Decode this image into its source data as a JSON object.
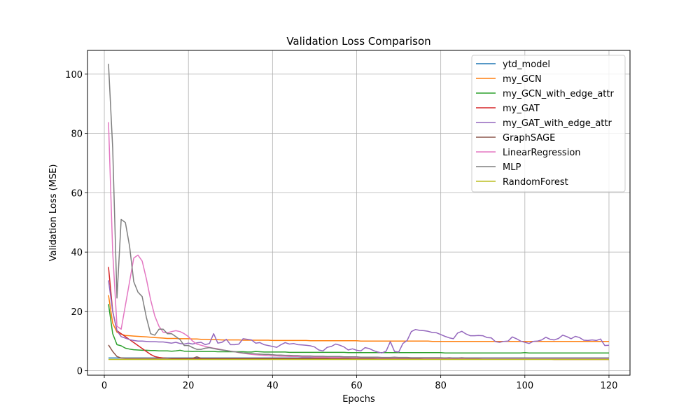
{
  "chart_data": {
    "type": "line",
    "title": "Validation Loss Comparison",
    "xlabel": "Epochs",
    "ylabel": "Validation Loss (MSE)",
    "xlim": [
      -4,
      125
    ],
    "ylim": [
      -1.5,
      108
    ],
    "xticks": [
      0,
      20,
      40,
      60,
      80,
      100,
      120
    ],
    "yticks": [
      0,
      20,
      40,
      60,
      80,
      100
    ],
    "grid": true,
    "legend_position": "top-right",
    "x": [
      1,
      2,
      3,
      4,
      5,
      6,
      7,
      8,
      9,
      10,
      11,
      12,
      13,
      14,
      15,
      16,
      17,
      18,
      19,
      20,
      21,
      22,
      23,
      24,
      25,
      26,
      27,
      28,
      29,
      30,
      31,
      32,
      33,
      34,
      35,
      36,
      37,
      38,
      39,
      40,
      41,
      42,
      43,
      44,
      45,
      46,
      47,
      48,
      49,
      50,
      51,
      52,
      53,
      54,
      55,
      56,
      57,
      58,
      59,
      60,
      61,
      62,
      63,
      64,
      65,
      66,
      67,
      68,
      69,
      70,
      71,
      72,
      73,
      74,
      75,
      76,
      77,
      78,
      79,
      80,
      81,
      82,
      83,
      84,
      85,
      86,
      87,
      88,
      89,
      90,
      91,
      92,
      93,
      94,
      95,
      96,
      97,
      98,
      99,
      100,
      101,
      102,
      103,
      104,
      105,
      106,
      107,
      108,
      109,
      110,
      111,
      112,
      113,
      114,
      115,
      116,
      117,
      118,
      119,
      120
    ],
    "series": [
      {
        "name": "ytd_model",
        "color": "#1f77b4",
        "values": [
          4.3,
          4.3,
          4.3,
          4.3,
          4.3,
          4.3,
          4.3,
          4.3,
          4.3,
          4.3,
          4.3,
          4.3,
          4.3,
          4.3,
          4.3,
          4.3,
          4.3,
          4.3,
          4.3,
          4.3,
          4.3,
          4.3,
          4.3,
          4.3,
          4.3,
          4.3,
          4.3,
          4.3,
          4.3,
          4.3,
          4.3,
          4.3,
          4.3,
          4.3,
          4.3,
          4.3,
          4.3,
          4.3,
          4.3,
          4.3,
          4.3,
          4.3,
          4.3,
          4.3,
          4.3,
          4.3,
          4.3,
          4.3,
          4.3,
          4.3,
          4.3,
          4.3,
          4.3,
          4.3,
          4.3,
          4.3,
          4.3,
          4.3,
          4.3,
          4.3,
          4.3,
          4.3,
          4.3,
          4.3,
          4.3,
          4.3,
          4.3,
          4.3,
          4.3,
          4.3,
          4.3,
          4.3,
          4.3,
          4.3,
          4.3,
          4.3,
          4.3,
          4.3,
          4.3,
          4.3,
          4.3,
          4.3,
          4.3,
          4.3,
          4.3,
          4.3,
          4.3,
          4.3,
          4.3,
          4.3,
          4.3,
          4.3,
          4.3,
          4.3,
          4.3,
          4.3,
          4.3,
          4.3,
          4.3,
          4.3,
          4.3,
          4.3,
          4.3,
          4.3,
          4.3,
          4.3,
          4.3,
          4.3,
          4.3,
          4.3,
          4.3,
          4.3,
          4.3,
          4.3,
          4.3,
          4.3,
          4.3,
          4.3,
          4.3,
          4.3
        ]
      },
      {
        "name": "my_GCN",
        "color": "#ff7f0e",
        "values": [
          25.5,
          16.0,
          13.0,
          12.3,
          11.9,
          11.8,
          11.7,
          11.6,
          11.5,
          11.4,
          11.3,
          11.2,
          11.1,
          11.0,
          10.9,
          10.9,
          10.9,
          10.8,
          10.8,
          10.8,
          10.7,
          10.7,
          10.6,
          10.6,
          10.5,
          10.5,
          10.5,
          10.4,
          10.4,
          10.4,
          10.4,
          10.4,
          10.3,
          10.3,
          10.3,
          10.3,
          10.3,
          10.3,
          10.3,
          10.2,
          10.2,
          10.2,
          10.2,
          10.2,
          10.2,
          10.2,
          10.2,
          10.2,
          10.1,
          10.1,
          10.1,
          10.1,
          10.1,
          10.1,
          10.1,
          10.1,
          10.1,
          10.1,
          10.1,
          10.1,
          10.0,
          10.0,
          10.0,
          10.0,
          10.0,
          10.0,
          10.0,
          10.0,
          10.0,
          10.0,
          10.0,
          10.0,
          10.0,
          10.0,
          10.0,
          10.0,
          10.0,
          9.9,
          9.9,
          9.9,
          9.9,
          9.9,
          9.9,
          9.9,
          9.9,
          9.9,
          9.9,
          9.9,
          9.9,
          9.9,
          9.9,
          9.9,
          9.9,
          9.9,
          9.9,
          9.9,
          9.9,
          9.9,
          9.9,
          9.9,
          9.9,
          9.9,
          9.9,
          9.9,
          9.9,
          9.9,
          9.9,
          9.9,
          9.9,
          9.9,
          9.9,
          9.9,
          9.9,
          9.9,
          9.9,
          9.9,
          9.9,
          9.9,
          9.9,
          9.9
        ]
      },
      {
        "name": "my_GCN_with_edge_attr",
        "color": "#2ca02c",
        "values": [
          22.5,
          12.5,
          8.8,
          8.4,
          7.6,
          7.3,
          7.1,
          7.0,
          6.9,
          6.9,
          6.8,
          6.8,
          6.7,
          6.7,
          6.7,
          6.6,
          6.7,
          6.9,
          6.6,
          6.6,
          6.5,
          6.6,
          6.5,
          6.5,
          6.5,
          6.5,
          6.4,
          6.4,
          6.4,
          6.4,
          6.4,
          6.4,
          6.4,
          6.3,
          6.3,
          6.5,
          6.4,
          6.3,
          6.3,
          6.3,
          6.3,
          6.3,
          6.3,
          6.2,
          6.2,
          6.2,
          6.2,
          6.2,
          6.2,
          6.2,
          6.2,
          6.2,
          6.2,
          6.2,
          6.2,
          6.2,
          6.2,
          6.1,
          6.1,
          6.1,
          6.1,
          6.1,
          6.1,
          6.1,
          6.1,
          6.1,
          6.1,
          6.1,
          6.1,
          6.1,
          6.1,
          6.1,
          6.1,
          6.1,
          6.1,
          6.1,
          6.1,
          6.1,
          6.1,
          6.1,
          6.0,
          6.0,
          6.0,
          6.0,
          6.0,
          6.0,
          6.0,
          6.0,
          6.0,
          6.0,
          6.0,
          6.0,
          6.0,
          6.0,
          6.0,
          6.0,
          6.0,
          6.0,
          6.0,
          6.1,
          6.0,
          6.0,
          6.0,
          6.0,
          6.0,
          6.0,
          6.0,
          6.0,
          6.0,
          6.0,
          6.0,
          6.0,
          6.0,
          6.0,
          6.0,
          6.0,
          6.0,
          6.0,
          6.0,
          6.0
        ]
      },
      {
        "name": "my_GAT",
        "color": "#d62728",
        "values": [
          35.0,
          20.0,
          13.5,
          12.5,
          11.5,
          10.5,
          9.5,
          8.5,
          7.5,
          6.5,
          5.5,
          4.8,
          4.5,
          4.3,
          4.2,
          4.1,
          4.1,
          4.0,
          4.0,
          4.0,
          4.0,
          4.0,
          4.0,
          4.0,
          4.0,
          4.0,
          4.0,
          4.0,
          4.0,
          4.0,
          4.0,
          4.0,
          4.0,
          4.0,
          4.0,
          4.0,
          4.0,
          4.0,
          4.0,
          4.0,
          4.0,
          4.0,
          4.0,
          4.0,
          4.0,
          4.0,
          4.0,
          4.0,
          4.0,
          4.0,
          4.0,
          4.0,
          4.0,
          4.0,
          4.0,
          4.0,
          4.0,
          4.0,
          4.0,
          4.0,
          3.9,
          3.9,
          3.9,
          3.9,
          3.9,
          3.9,
          3.9,
          3.9,
          3.9,
          3.9,
          3.9,
          3.9,
          3.9,
          3.9,
          3.9,
          3.9,
          3.9,
          3.9,
          3.9,
          3.9,
          3.9,
          3.9,
          3.9,
          3.9,
          3.9,
          3.9,
          3.9,
          3.9,
          3.9,
          3.9,
          3.9,
          3.9,
          3.9,
          3.9,
          3.9,
          3.9,
          3.9,
          3.9,
          3.9,
          3.9,
          3.9,
          3.9,
          3.9,
          3.9,
          3.9,
          3.9,
          3.8,
          3.8,
          3.8,
          3.8,
          3.8,
          3.8,
          3.8,
          3.8,
          3.8,
          3.8,
          3.8,
          3.8,
          3.8,
          3.8
        ]
      },
      {
        "name": "my_GAT_with_edge_attr",
        "color": "#9467bd",
        "values": [
          30.5,
          20.0,
          13.5,
          11.5,
          11.0,
          10.5,
          10.2,
          10.0,
          10.0,
          9.9,
          9.8,
          9.8,
          9.7,
          9.7,
          9.5,
          9.3,
          9.6,
          9.2,
          9.0,
          9.3,
          9.0,
          9.4,
          9.6,
          8.8,
          9.2,
          12.5,
          9.3,
          9.6,
          10.6,
          8.8,
          8.8,
          9.0,
          10.8,
          10.6,
          10.4,
          9.3,
          9.5,
          8.8,
          8.5,
          8.2,
          7.9,
          8.8,
          9.5,
          9.0,
          9.2,
          8.8,
          8.7,
          8.6,
          8.4,
          8.0,
          7.0,
          6.7,
          7.9,
          8.2,
          9.0,
          8.6,
          8.0,
          7.0,
          7.4,
          6.9,
          6.7,
          7.8,
          7.5,
          6.8,
          6.3,
          6.0,
          6.6,
          9.8,
          6.5,
          6.3,
          9.2,
          10.2,
          13.2,
          13.9,
          13.6,
          13.5,
          13.3,
          12.9,
          12.8,
          12.2,
          11.6,
          11.1,
          10.8,
          12.7,
          13.3,
          12.4,
          11.8,
          11.8,
          11.9,
          11.8,
          11.2,
          11.1,
          9.8,
          9.6,
          9.9,
          10.0,
          11.4,
          10.8,
          10.0,
          9.6,
          9.2,
          9.9,
          10.0,
          10.4,
          11.3,
          10.6,
          10.4,
          10.9,
          12.0,
          11.5,
          10.8,
          11.6,
          11.2,
          10.3,
          10.2,
          10.4,
          10.2,
          10.7,
          8.5,
          8.6
        ]
      },
      {
        "name": "GraphSAGE",
        "color": "#8c564b",
        "values": [
          8.7,
          6.5,
          4.8,
          4.3,
          4.2,
          4.2,
          4.2,
          4.2,
          4.2,
          4.2,
          4.2,
          4.2,
          4.2,
          4.2,
          4.2,
          4.2,
          4.2,
          4.2,
          4.2,
          4.2,
          4.2,
          4.7,
          4.2,
          4.2,
          4.2,
          4.2,
          4.2,
          4.2,
          4.2,
          4.2,
          4.2,
          4.2,
          4.2,
          4.2,
          4.2,
          4.2,
          4.2,
          4.2,
          4.2,
          4.2,
          4.2,
          4.2,
          4.2,
          4.2,
          4.2,
          4.2,
          4.2,
          4.2,
          4.2,
          4.2,
          4.2,
          4.2,
          4.2,
          4.2,
          4.2,
          4.2,
          4.2,
          4.2,
          4.2,
          4.2,
          4.2,
          4.2,
          4.2,
          4.2,
          4.2,
          4.2,
          4.2,
          4.2,
          4.2,
          4.2,
          4.2,
          4.2,
          4.2,
          4.2,
          4.2,
          4.2,
          4.2,
          4.2,
          4.2,
          4.2,
          4.2,
          4.2,
          4.2,
          4.2,
          4.2,
          4.2,
          4.2,
          4.2,
          4.2,
          4.2,
          4.2,
          4.2,
          4.2,
          4.2,
          4.2,
          4.2,
          4.2,
          4.2,
          4.2,
          4.2,
          4.2,
          4.2,
          4.2,
          4.2,
          4.2,
          4.2,
          4.2,
          4.2,
          4.2,
          4.2,
          4.2,
          4.2,
          4.2,
          4.2,
          4.2,
          4.2,
          4.2,
          4.2,
          4.2,
          4.2
        ]
      },
      {
        "name": "LinearRegression",
        "color": "#e377c2",
        "values": [
          83.8,
          40.0,
          15.0,
          14.0,
          22.0,
          30.0,
          38.0,
          39.0,
          37.0,
          31.0,
          24.0,
          18.5,
          15.0,
          13.0,
          12.8,
          13.2,
          13.5,
          13.2,
          12.5,
          11.5,
          10.0,
          9.0,
          8.6,
          8.2,
          7.9,
          7.6,
          7.4,
          7.1,
          6.8,
          6.6,
          6.4,
          6.1,
          5.9,
          5.7,
          5.5,
          5.4,
          5.3,
          5.2,
          5.1,
          5.0,
          5.0,
          4.9,
          4.9,
          4.8,
          4.8,
          4.8,
          4.7,
          4.7,
          4.7,
          4.6,
          4.6,
          4.6,
          4.6,
          4.5,
          4.5,
          4.5,
          4.5,
          4.5,
          4.4,
          4.4,
          4.4,
          4.4,
          4.4,
          4.4,
          4.3,
          4.3,
          4.3,
          4.3,
          4.3,
          4.3,
          4.3,
          4.3,
          4.3,
          4.3,
          4.3,
          4.2,
          4.2,
          4.2,
          4.2,
          4.2,
          4.2,
          4.2,
          4.2,
          4.2,
          4.2,
          4.2,
          4.2,
          4.2,
          4.2,
          4.1,
          4.1,
          4.1,
          4.1,
          4.1,
          4.1,
          4.1,
          4.1,
          4.1,
          4.1,
          4.1,
          4.1,
          4.1,
          4.1,
          4.1,
          4.1,
          4.1,
          4.1,
          4.1,
          4.1,
          4.1,
          4.1,
          4.1,
          4.1,
          4.1,
          4.1,
          4.1,
          4.1,
          4.1,
          4.1,
          4.1
        ]
      },
      {
        "name": "MLP",
        "color": "#7f7f7f",
        "values": [
          103.5,
          75.0,
          24.5,
          51.0,
          50.0,
          42.0,
          30.0,
          26.5,
          25.0,
          18.0,
          12.5,
          12.0,
          14.0,
          14.0,
          12.5,
          12.5,
          11.5,
          10.5,
          8.5,
          8.5,
          7.8,
          7.2,
          7.2,
          7.6,
          7.8,
          7.5,
          7.2,
          7.0,
          6.8,
          6.6,
          6.4,
          6.2,
          6.0,
          5.9,
          5.8,
          5.7,
          5.6,
          5.5,
          5.5,
          5.4,
          5.3,
          5.3,
          5.2,
          5.2,
          5.1,
          5.1,
          5.0,
          5.0,
          5.0,
          4.9,
          4.9,
          4.9,
          4.8,
          4.8,
          4.8,
          4.8,
          4.7,
          4.7,
          4.7,
          4.7,
          4.6,
          4.6,
          4.6,
          4.6,
          4.6,
          4.5,
          4.5,
          4.5,
          4.6,
          4.5,
          4.5,
          4.5,
          4.4,
          4.4,
          4.4,
          4.4,
          4.4,
          4.4,
          4.4,
          4.4,
          4.3,
          4.4,
          4.3,
          4.3,
          4.4,
          4.3,
          4.3,
          4.3,
          4.3,
          4.3,
          4.3,
          4.3,
          4.3,
          4.3,
          4.3,
          4.3,
          4.3,
          4.3,
          4.3,
          4.3,
          4.3,
          4.3,
          4.3,
          4.3,
          4.3,
          4.3,
          4.3,
          4.3,
          4.3,
          4.3,
          4.3,
          4.3,
          4.3,
          4.3,
          4.3,
          4.3,
          4.3,
          4.3,
          4.3,
          4.3
        ]
      },
      {
        "name": "RandomForest",
        "color": "#bcbd22",
        "values": [
          3.8,
          3.8,
          3.8,
          3.8,
          3.8,
          3.8,
          3.8,
          3.8,
          3.8,
          3.8,
          3.8,
          3.8,
          3.8,
          3.8,
          3.8,
          3.8,
          3.8,
          3.8,
          3.8,
          3.8,
          3.8,
          3.8,
          3.8,
          3.8,
          3.8,
          3.8,
          3.8,
          3.8,
          3.8,
          3.8,
          3.8,
          3.8,
          3.8,
          3.8,
          3.8,
          3.8,
          3.8,
          3.8,
          3.8,
          3.8,
          3.8,
          3.8,
          3.8,
          3.8,
          3.8,
          3.8,
          3.8,
          3.8,
          3.8,
          3.8,
          3.8,
          3.8,
          3.8,
          3.8,
          3.8,
          3.8,
          3.8,
          3.8,
          3.8,
          3.8,
          3.8,
          3.8,
          3.8,
          3.8,
          3.8,
          3.8,
          3.8,
          3.8,
          3.8,
          3.8,
          3.8,
          3.8,
          3.8,
          3.8,
          3.8,
          3.8,
          3.8,
          3.8,
          3.8,
          3.8,
          3.8,
          3.8,
          3.8,
          3.8,
          3.8,
          3.8,
          3.8,
          3.8,
          3.8,
          3.8,
          3.8,
          3.8,
          3.8,
          3.8,
          3.8,
          3.8,
          3.8,
          3.8,
          3.8,
          3.8,
          3.8,
          3.8,
          3.8,
          3.8,
          3.8,
          3.8,
          3.8,
          3.8,
          3.8,
          3.8,
          3.8,
          3.8,
          3.8,
          3.8,
          3.8,
          3.8,
          3.8,
          3.8,
          3.8,
          3.8
        ]
      }
    ]
  }
}
